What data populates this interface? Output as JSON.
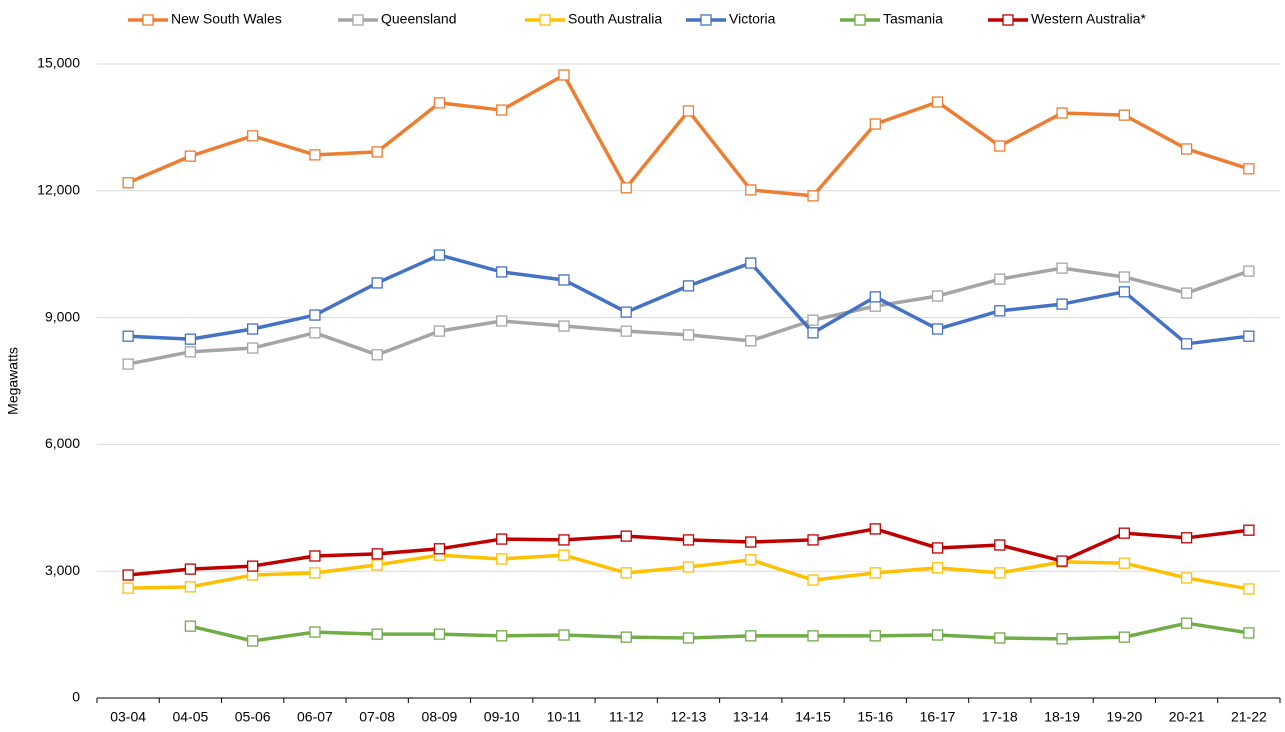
{
  "chart_data": {
    "type": "line",
    "y_label": "Megawatts",
    "categories": [
      "03-04",
      "04-05",
      "05-06",
      "06-07",
      "07-08",
      "08-09",
      "09-10",
      "10-11",
      "11-12",
      "12-13",
      "13-14",
      "14-15",
      "15-16",
      "16-17",
      "17-18",
      "18-19",
      "19-20",
      "20-21",
      "21-22"
    ],
    "ylim": [
      0,
      15500
    ],
    "yticks": [
      0,
      {
        "value": 3000,
        "label": "3,000"
      },
      {
        "value": 6000,
        "label": "6,000"
      },
      {
        "value": 9000,
        "label": "9,000"
      },
      {
        "value": 12000,
        "label": "12,000"
      },
      {
        "value": 15000,
        "label": "15,000"
      }
    ],
    "grid": true,
    "legend": "top",
    "series": [
      {
        "name": "New South Wales",
        "color": "#ed7d31",
        "values": [
          12190,
          12820,
          13300,
          12850,
          12920,
          14080,
          13910,
          14740,
          12070,
          13890,
          12020,
          11880,
          13580,
          14100,
          13060,
          13840,
          13790,
          12990,
          12520
        ]
      },
      {
        "name": "Queensland",
        "color": "#a5a5a5",
        "values": [
          7900,
          8190,
          8280,
          8640,
          8120,
          8680,
          8920,
          8800,
          8680,
          8590,
          8450,
          8940,
          9270,
          9510,
          9910,
          10170,
          9960,
          9580,
          10100
        ]
      },
      {
        "name": "South Australia",
        "color": "#ffc000",
        "values": [
          2600,
          2630,
          2910,
          2960,
          3150,
          3380,
          3290,
          3380,
          2960,
          3100,
          3270,
          2790,
          2960,
          3080,
          2960,
          3220,
          3190,
          2840,
          2580
        ]
      },
      {
        "name": "Victoria",
        "color": "#4472c4",
        "values": [
          8560,
          8490,
          8730,
          9060,
          9820,
          10480,
          10080,
          9890,
          9130,
          9750,
          10290,
          8640,
          9490,
          8730,
          9160,
          9320,
          9610,
          8380,
          8560
        ]
      },
      {
        "name": "Tasmania",
        "color": "#70ad47",
        "values": [
          null,
          1700,
          1350,
          1560,
          1510,
          1510,
          1470,
          1490,
          1440,
          1420,
          1470,
          1470,
          1470,
          1490,
          1420,
          1400,
          1440,
          1770,
          1540
        ]
      },
      {
        "name": "Western Australia*",
        "color": "#c00000",
        "values": [
          2910,
          3050,
          3120,
          3360,
          3410,
          3530,
          3760,
          3740,
          3830,
          3740,
          3690,
          3740,
          4000,
          3550,
          3620,
          3240,
          3900,
          3790,
          3970
        ]
      }
    ]
  }
}
